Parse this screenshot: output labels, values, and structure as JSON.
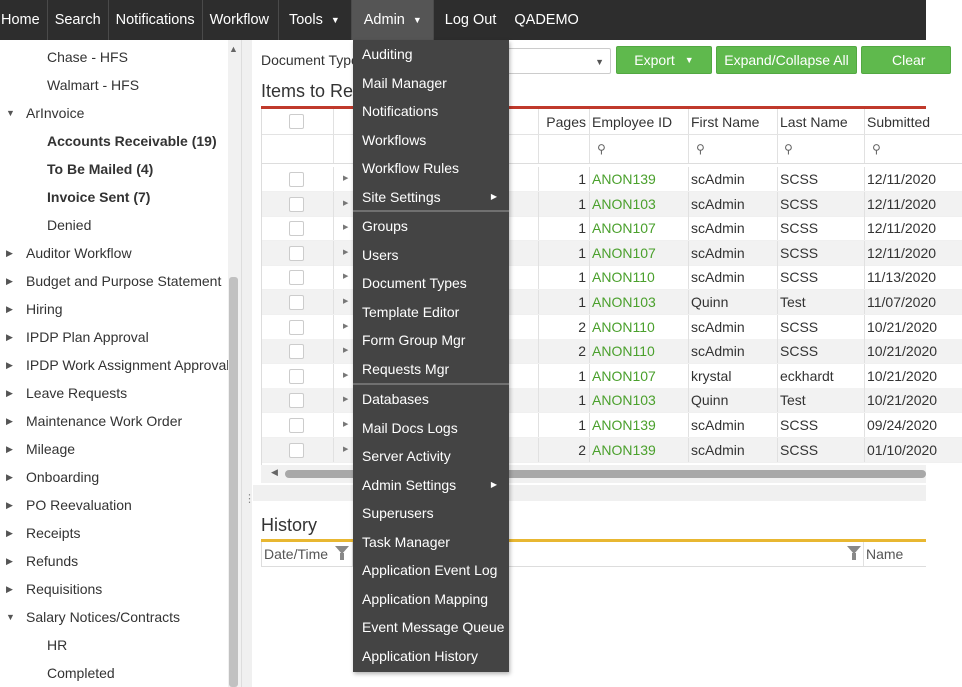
{
  "nav": {
    "items": [
      {
        "label": "Home"
      },
      {
        "label": "Search"
      },
      {
        "label": "Notifications"
      },
      {
        "label": "Workflow"
      },
      {
        "label": "Tools",
        "dropdown": true
      },
      {
        "label": "Admin",
        "dropdown": true,
        "active": true
      },
      {
        "label": "Log Out"
      }
    ],
    "brand": "QADEMO"
  },
  "sidebar": {
    "items": [
      {
        "label": "Chase - HFS",
        "level": 2
      },
      {
        "label": "Walmart - HFS",
        "level": 2
      },
      {
        "label": "ArInvoice",
        "level": 1,
        "expanded": true
      },
      {
        "label": "Accounts Receivable (19)",
        "level": 2,
        "bold": true
      },
      {
        "label": "To Be Mailed (4)",
        "level": 2,
        "bold": true
      },
      {
        "label": "Invoice Sent (7)",
        "level": 2,
        "bold": true
      },
      {
        "label": "Denied",
        "level": 2
      },
      {
        "label": "Auditor Workflow",
        "level": 1
      },
      {
        "label": "Budget and Purpose Statement",
        "level": 1
      },
      {
        "label": "Hiring",
        "level": 1
      },
      {
        "label": "IPDP Plan Approval",
        "level": 1
      },
      {
        "label": "IPDP Work Assignment Approval",
        "level": 1
      },
      {
        "label": "Leave Requests",
        "level": 1
      },
      {
        "label": "Maintenance Work Order",
        "level": 1
      },
      {
        "label": "Mileage",
        "level": 1
      },
      {
        "label": "Onboarding",
        "level": 1
      },
      {
        "label": "PO Reevaluation",
        "level": 1
      },
      {
        "label": "Receipts",
        "level": 1
      },
      {
        "label": "Refunds",
        "level": 1
      },
      {
        "label": "Requisitions",
        "level": 1
      },
      {
        "label": "Salary Notices/Contracts",
        "level": 1,
        "expanded": true
      },
      {
        "label": "HR",
        "level": 2
      },
      {
        "label": "Completed",
        "level": 2
      }
    ]
  },
  "toolbar": {
    "doctype_label": "Document Type",
    "export_label": "Export",
    "expand_label": "Expand/Collapse All",
    "clear_label": "Clear"
  },
  "items_grid": {
    "title": "Items to Review",
    "columns": [
      "Pages",
      "Employee ID",
      "First Name",
      "Last Name",
      "Submitted"
    ],
    "rows": [
      {
        "pages": "1",
        "employee_id": "ANON139",
        "first": "scAdmin",
        "last": "SCSS",
        "submitted": "12/11/2020"
      },
      {
        "pages": "1",
        "employee_id": "ANON103",
        "first": "scAdmin",
        "last": "SCSS",
        "submitted": "12/11/2020"
      },
      {
        "pages": "1",
        "employee_id": "ANON107",
        "first": "scAdmin",
        "last": "SCSS",
        "submitted": "12/11/2020"
      },
      {
        "pages": "1",
        "employee_id": "ANON107",
        "first": "scAdmin",
        "last": "SCSS",
        "submitted": "12/11/2020"
      },
      {
        "pages": "1",
        "employee_id": "ANON110",
        "first": "scAdmin",
        "last": "SCSS",
        "submitted": "11/13/2020"
      },
      {
        "pages": "1",
        "employee_id": "ANON103",
        "first": "Quinn",
        "last": "Test",
        "submitted": "11/07/2020"
      },
      {
        "pages": "2",
        "employee_id": "ANON110",
        "first": "scAdmin",
        "last": "SCSS",
        "submitted": "10/21/2020"
      },
      {
        "pages": "2",
        "employee_id": "ANON110",
        "first": "scAdmin",
        "last": "SCSS",
        "submitted": "10/21/2020"
      },
      {
        "pages": "1",
        "employee_id": "ANON107",
        "first": "krystal",
        "last": "eckhardt",
        "submitted": "10/21/2020"
      },
      {
        "pages": "1",
        "employee_id": "ANON103",
        "first": "Quinn",
        "last": "Test",
        "submitted": "10/21/2020"
      },
      {
        "pages": "1",
        "employee_id": "ANON139",
        "first": "scAdmin",
        "last": "SCSS",
        "submitted": "09/24/2020"
      },
      {
        "pages": "2",
        "employee_id": "ANON139",
        "first": "scAdmin",
        "last": "SCSS",
        "submitted": "01/10/2020"
      }
    ]
  },
  "history": {
    "title": "History",
    "col_datetime": "Date/Time",
    "col_name": "Name"
  },
  "admin_menu": {
    "items": [
      {
        "label": "Auditing"
      },
      {
        "label": "Mail Manager"
      },
      {
        "label": "Notifications"
      },
      {
        "label": "Workflows"
      },
      {
        "label": "Workflow Rules"
      },
      {
        "label": "Site Settings",
        "submenu": true
      },
      {
        "label": "Groups"
      },
      {
        "label": "Users"
      },
      {
        "label": "Document Types"
      },
      {
        "label": "Template Editor"
      },
      {
        "label": "Form Group Mgr"
      },
      {
        "label": "Requests Mgr"
      },
      {
        "label": "Databases"
      },
      {
        "label": "Mail Docs Logs"
      },
      {
        "label": "Server Activity"
      },
      {
        "label": "Admin Settings",
        "submenu": true
      },
      {
        "label": "Superusers"
      },
      {
        "label": "Task Manager"
      },
      {
        "label": "Application Event Log"
      },
      {
        "label": "Application Mapping"
      },
      {
        "label": "Event Message Queue"
      },
      {
        "label": "Application History"
      }
    ]
  },
  "colors": {
    "nav_bg": "#2d2d2d",
    "menu_bg": "#444444",
    "accent_green": "#5fb94d",
    "link_green": "#4aa02c",
    "grid_rule": "#c0392b",
    "history_rule": "#e8b731"
  }
}
